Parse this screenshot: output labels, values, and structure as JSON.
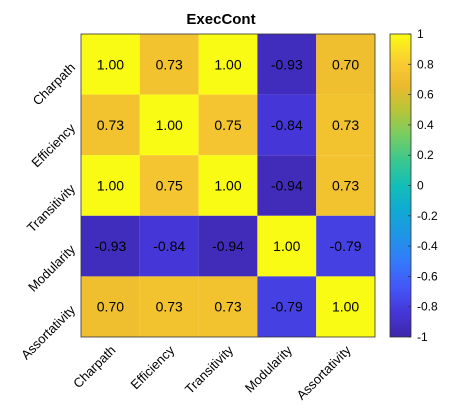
{
  "chart_data": {
    "type": "heatmap",
    "title": "ExecCont",
    "xlabel": "",
    "ylabel": "",
    "row_labels": [
      "Charpath",
      "Efficiency",
      "Transitivity",
      "Modularity",
      "Assortativity"
    ],
    "col_labels": [
      "Charpath",
      "Efficiency",
      "Transitivity",
      "Modularity",
      "Assortativity"
    ],
    "values": [
      [
        1.0,
        0.73,
        1.0,
        -0.93,
        0.7
      ],
      [
        0.73,
        1.0,
        0.75,
        -0.84,
        0.73
      ],
      [
        1.0,
        0.75,
        1.0,
        -0.94,
        0.73
      ],
      [
        -0.93,
        -0.84,
        -0.94,
        1.0,
        -0.79
      ],
      [
        0.7,
        0.73,
        0.73,
        -0.79,
        1.0
      ]
    ],
    "value_labels": [
      [
        "1.00",
        "0.73",
        "1.00",
        "-0.93",
        "0.70"
      ],
      [
        "0.73",
        "1.00",
        "0.75",
        "-0.84",
        "0.73"
      ],
      [
        "1.00",
        "0.75",
        "1.00",
        "-0.94",
        "0.73"
      ],
      [
        "-0.93",
        "-0.84",
        "-0.94",
        "1.00",
        "-0.79"
      ],
      [
        "0.70",
        "0.73",
        "0.73",
        "-0.79",
        "1.00"
      ]
    ],
    "colorbar": {
      "colormap": "parula",
      "range": [
        -1,
        1
      ],
      "ticks": [
        "1",
        "0.8",
        "0.6",
        "0.4",
        "0.2",
        "0",
        "-0.2",
        "-0.4",
        "-0.6",
        "-0.8",
        "-1"
      ]
    }
  }
}
